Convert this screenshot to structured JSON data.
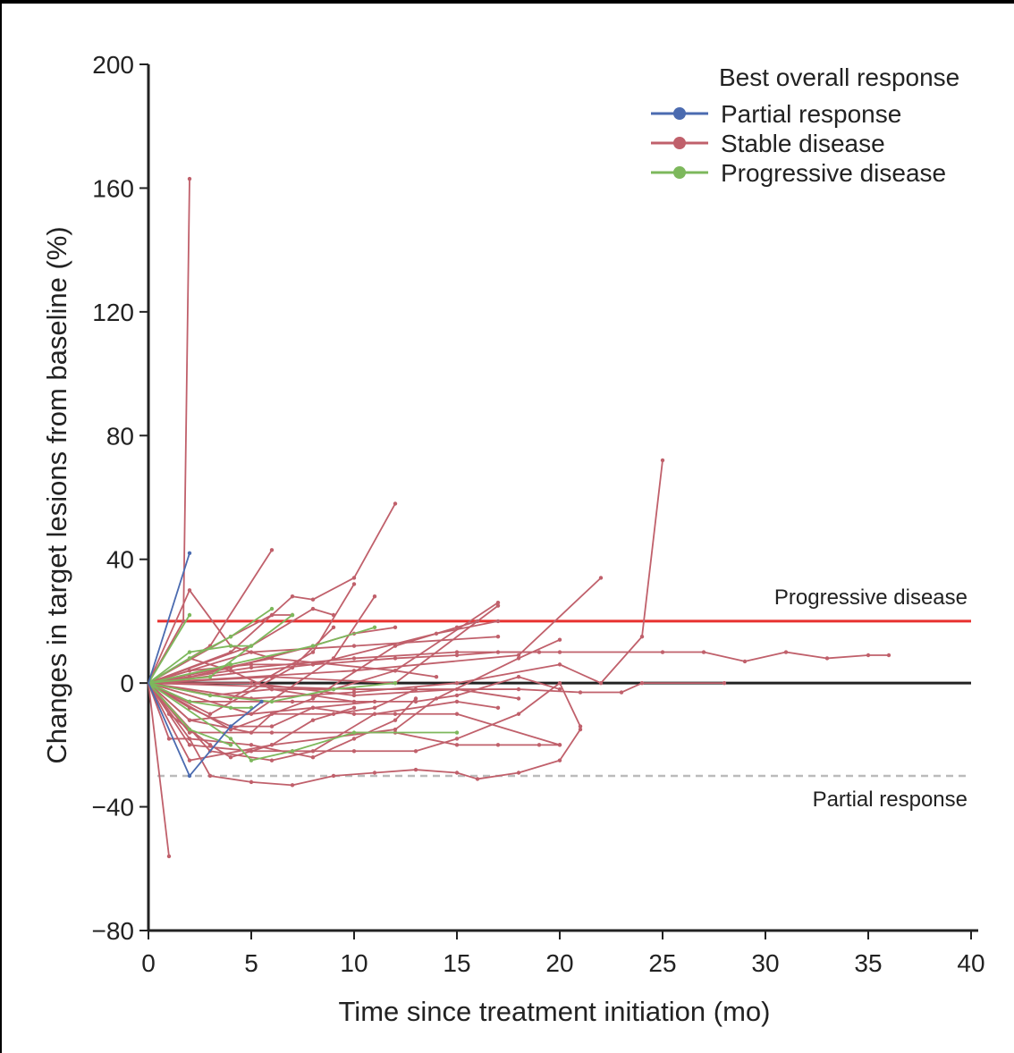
{
  "chart_data": {
    "type": "line",
    "xlabel": "Time since treatment initiation (mo)",
    "ylabel": "Changes in target lesions from baseline (%)",
    "xlim": [
      0,
      40
    ],
    "ylim": [
      -80,
      200
    ],
    "xticks": [
      0,
      5,
      10,
      15,
      20,
      25,
      30,
      35,
      40
    ],
    "yticks": [
      -80,
      -40,
      0,
      40,
      80,
      120,
      160,
      200
    ],
    "grid": false,
    "legend": {
      "title": "Best overall response",
      "placement": "top-right",
      "entries": [
        {
          "name": "Partial response",
          "color": "#4b6bb0"
        },
        {
          "name": "Stable disease",
          "color": "#c0606b"
        },
        {
          "name": "Progressive disease",
          "color": "#7db85c"
        }
      ]
    },
    "reference_lines": [
      {
        "label": "Progressive disease",
        "y": 20,
        "color": "#e8312f",
        "style": "solid"
      },
      {
        "label": "",
        "y": 0,
        "color": "#222222",
        "style": "solid"
      },
      {
        "label": "Partial response",
        "y": -30,
        "color": "#bbbbbb",
        "style": "dashed"
      }
    ],
    "series": [
      {
        "group": "Stable disease",
        "points": [
          [
            0,
            0
          ],
          [
            1.7,
            20
          ],
          [
            2,
            163
          ]
        ]
      },
      {
        "group": "Stable disease",
        "points": [
          [
            0,
            0
          ],
          [
            1,
            -56
          ]
        ]
      },
      {
        "group": "Partial response",
        "points": [
          [
            0,
            0
          ],
          [
            2,
            42
          ]
        ]
      },
      {
        "group": "Partial response",
        "points": [
          [
            0,
            0
          ],
          [
            2,
            -30
          ],
          [
            4,
            -14
          ],
          [
            5.5,
            -6
          ]
        ]
      },
      {
        "group": "Stable disease",
        "points": [
          [
            0,
            0
          ],
          [
            2,
            -18
          ],
          [
            3,
            -30
          ],
          [
            5,
            -32
          ],
          [
            7,
            -33
          ],
          [
            9,
            -30
          ],
          [
            11,
            -29
          ],
          [
            13,
            -28
          ],
          [
            15,
            -29
          ],
          [
            16,
            -31
          ],
          [
            18,
            -29
          ],
          [
            20,
            -25
          ],
          [
            21,
            -15
          ]
        ]
      },
      {
        "group": "Stable disease",
        "points": [
          [
            0,
            0
          ],
          [
            5,
            -5
          ],
          [
            10,
            -3
          ],
          [
            15,
            0
          ],
          [
            20,
            6
          ],
          [
            22,
            0
          ],
          [
            24,
            15
          ],
          [
            25,
            72
          ]
        ]
      },
      {
        "group": "Stable disease",
        "points": [
          [
            0,
            0
          ],
          [
            5,
            5
          ],
          [
            10,
            8
          ],
          [
            15,
            10
          ],
          [
            20,
            10
          ],
          [
            25,
            10
          ],
          [
            27,
            10
          ],
          [
            29,
            7
          ],
          [
            31,
            10
          ],
          [
            33,
            8
          ],
          [
            35,
            9
          ],
          [
            36,
            9
          ]
        ]
      },
      {
        "group": "Stable disease",
        "points": [
          [
            0,
            0
          ],
          [
            10,
            -2
          ],
          [
            18,
            -2
          ],
          [
            21,
            -3
          ],
          [
            23,
            -3
          ],
          [
            24,
            0
          ],
          [
            28,
            0
          ]
        ]
      },
      {
        "group": "Stable disease",
        "points": [
          [
            0,
            0
          ],
          [
            4,
            10
          ],
          [
            7,
            28
          ],
          [
            8,
            27
          ],
          [
            10,
            34
          ],
          [
            12,
            58
          ]
        ]
      },
      {
        "group": "Stable disease",
        "points": [
          [
            0,
            0
          ],
          [
            3,
            12
          ],
          [
            6,
            43
          ]
        ]
      },
      {
        "group": "Stable disease",
        "points": [
          [
            0,
            0
          ],
          [
            2,
            30
          ],
          [
            4,
            12
          ],
          [
            6,
            8
          ]
        ]
      },
      {
        "group": "Stable disease",
        "points": [
          [
            0,
            0
          ],
          [
            10,
            4
          ],
          [
            18,
            9
          ],
          [
            22,
            34
          ]
        ]
      },
      {
        "group": "Stable disease",
        "points": [
          [
            0,
            0
          ],
          [
            6,
            8
          ],
          [
            12,
            4
          ],
          [
            17,
            26
          ]
        ]
      },
      {
        "group": "Stable disease",
        "points": [
          [
            0,
            0
          ],
          [
            6,
            2
          ],
          [
            12,
            0
          ],
          [
            17,
            25
          ]
        ]
      },
      {
        "group": "Stable disease",
        "points": [
          [
            0,
            0
          ],
          [
            5,
            10
          ],
          [
            10,
            12
          ],
          [
            17,
            15
          ]
        ]
      },
      {
        "group": "Stable disease",
        "points": [
          [
            0,
            0
          ],
          [
            8,
            6
          ],
          [
            14,
            16
          ],
          [
            17,
            20
          ]
        ]
      },
      {
        "group": "Stable disease",
        "points": [
          [
            0,
            0
          ],
          [
            4,
            15
          ],
          [
            6,
            22
          ],
          [
            7,
            22
          ]
        ]
      },
      {
        "group": "Stable disease",
        "points": [
          [
            0,
            0
          ],
          [
            5,
            12
          ],
          [
            8,
            24
          ],
          [
            9,
            22
          ]
        ]
      },
      {
        "group": "Stable disease",
        "points": [
          [
            0,
            0
          ],
          [
            4,
            -5
          ],
          [
            8,
            10
          ],
          [
            10,
            32
          ]
        ]
      },
      {
        "group": "Stable disease",
        "points": [
          [
            0,
            0
          ],
          [
            5,
            -10
          ],
          [
            9,
            8
          ],
          [
            11,
            28
          ]
        ]
      },
      {
        "group": "Stable disease",
        "points": [
          [
            0,
            0
          ],
          [
            3,
            -10
          ],
          [
            7,
            5
          ],
          [
            9,
            18
          ]
        ]
      },
      {
        "group": "Stable disease",
        "points": [
          [
            0,
            0
          ],
          [
            4,
            -15
          ],
          [
            8,
            -5
          ],
          [
            12,
            12
          ],
          [
            15,
            18
          ],
          [
            16,
            20
          ]
        ]
      },
      {
        "group": "Stable disease",
        "points": [
          [
            0,
            0
          ],
          [
            2,
            -25
          ],
          [
            6,
            -20
          ],
          [
            12,
            -15
          ],
          [
            14,
            -5
          ],
          [
            18,
            8
          ],
          [
            20,
            14
          ]
        ]
      },
      {
        "group": "Stable disease",
        "points": [
          [
            0,
            0
          ],
          [
            2,
            -12
          ],
          [
            8,
            -8
          ],
          [
            10,
            -10
          ],
          [
            12,
            -10
          ],
          [
            15,
            -10
          ],
          [
            20,
            -20
          ]
        ]
      },
      {
        "group": "Stable disease",
        "points": [
          [
            0,
            0
          ],
          [
            2,
            -16
          ],
          [
            6,
            -16
          ],
          [
            12,
            -16
          ],
          [
            15,
            -20
          ],
          [
            17,
            -20
          ],
          [
            19,
            -20
          ],
          [
            20,
            -20
          ]
        ]
      },
      {
        "group": "Stable disease",
        "points": [
          [
            0,
            0
          ],
          [
            2,
            -20
          ],
          [
            5,
            -22
          ],
          [
            7,
            -22
          ],
          [
            10,
            -22
          ],
          [
            13,
            -22
          ],
          [
            15,
            -18
          ],
          [
            18,
            -10
          ],
          [
            20,
            0
          ],
          [
            21,
            -14
          ]
        ]
      },
      {
        "group": "Stable disease",
        "points": [
          [
            0,
            0
          ],
          [
            2,
            -6
          ],
          [
            7,
            -6
          ],
          [
            13,
            -6
          ],
          [
            15,
            -4
          ],
          [
            18,
            2
          ],
          [
            20,
            -2
          ]
        ]
      },
      {
        "group": "Stable disease",
        "points": [
          [
            0,
            0
          ],
          [
            1,
            -18
          ],
          [
            2,
            -18
          ],
          [
            5,
            -20
          ],
          [
            8,
            -24
          ],
          [
            10,
            -18
          ],
          [
            12,
            -12
          ],
          [
            13,
            -5
          ]
        ]
      },
      {
        "group": "Stable disease",
        "points": [
          [
            0,
            0
          ],
          [
            2,
            -8
          ],
          [
            4,
            -14
          ],
          [
            6,
            -14
          ],
          [
            8,
            -8
          ],
          [
            11,
            -6
          ]
        ]
      },
      {
        "group": "Stable disease",
        "points": [
          [
            0,
            0
          ],
          [
            3,
            -4
          ],
          [
            6,
            -2
          ],
          [
            9,
            -2
          ],
          [
            12,
            4
          ],
          [
            14,
            2
          ]
        ]
      },
      {
        "group": "Stable disease",
        "points": [
          [
            0,
            0
          ],
          [
            2,
            4
          ],
          [
            5,
            6
          ],
          [
            8,
            6
          ],
          [
            12,
            8
          ],
          [
            15,
            9
          ],
          [
            17,
            10
          ],
          [
            19,
            10
          ]
        ]
      },
      {
        "group": "Stable disease",
        "points": [
          [
            0,
            0
          ],
          [
            2,
            -12
          ],
          [
            5,
            -16
          ],
          [
            6,
            -10
          ],
          [
            9,
            -10
          ],
          [
            11,
            -8
          ],
          [
            13,
            -2
          ]
        ]
      },
      {
        "group": "Stable disease",
        "points": [
          [
            0,
            0
          ],
          [
            2,
            2
          ],
          [
            4,
            5
          ],
          [
            8,
            12
          ],
          [
            10,
            16
          ],
          [
            12,
            18
          ]
        ]
      },
      {
        "group": "Stable disease",
        "points": [
          [
            0,
            0
          ],
          [
            3,
            -22
          ],
          [
            6,
            -25
          ],
          [
            8,
            -22
          ],
          [
            11,
            -10
          ],
          [
            15,
            -6
          ],
          [
            17,
            -8
          ]
        ]
      },
      {
        "group": "Stable disease",
        "points": [
          [
            0,
            0
          ],
          [
            2,
            8
          ],
          [
            4,
            4
          ],
          [
            6,
            -2
          ],
          [
            8,
            -4
          ],
          [
            10,
            -6
          ]
        ]
      },
      {
        "group": "Stable disease",
        "points": [
          [
            0,
            0
          ],
          [
            5,
            0
          ],
          [
            10,
            -4
          ],
          [
            15,
            -2
          ],
          [
            18,
            -5
          ]
        ]
      },
      {
        "group": "Stable disease",
        "points": [
          [
            0,
            0
          ],
          [
            1,
            -10
          ],
          [
            3,
            -20
          ],
          [
            4,
            -24
          ],
          [
            6,
            -20
          ],
          [
            8,
            -12
          ],
          [
            10,
            -8
          ]
        ]
      },
      {
        "group": "Progressive disease",
        "points": [
          [
            0,
            0
          ],
          [
            2,
            10
          ],
          [
            4,
            12
          ],
          [
            5,
            12
          ]
        ]
      },
      {
        "group": "Progressive disease",
        "points": [
          [
            0,
            0
          ],
          [
            2,
            22
          ]
        ]
      },
      {
        "group": "Progressive disease",
        "points": [
          [
            0,
            0
          ],
          [
            2,
            8
          ],
          [
            4,
            15
          ],
          [
            6,
            24
          ]
        ]
      },
      {
        "group": "Progressive disease",
        "points": [
          [
            0,
            0
          ],
          [
            4,
            -18
          ],
          [
            5,
            -25
          ],
          [
            7,
            -22
          ],
          [
            10,
            -16
          ],
          [
            15,
            -16
          ]
        ]
      },
      {
        "group": "Progressive disease",
        "points": [
          [
            0,
            0
          ],
          [
            2,
            -15
          ],
          [
            4,
            -20
          ]
        ]
      },
      {
        "group": "Progressive disease",
        "points": [
          [
            0,
            0
          ],
          [
            3,
            -4
          ],
          [
            6,
            -6
          ],
          [
            9,
            -2
          ],
          [
            12,
            0
          ]
        ]
      },
      {
        "group": "Progressive disease",
        "points": [
          [
            0,
            0
          ],
          [
            2,
            -6
          ],
          [
            4,
            -8
          ],
          [
            5,
            -8
          ]
        ]
      },
      {
        "group": "Progressive disease",
        "points": [
          [
            0,
            0
          ],
          [
            3,
            2
          ],
          [
            7,
            22
          ]
        ]
      },
      {
        "group": "Progressive disease",
        "points": [
          [
            0,
            0
          ],
          [
            4,
            6
          ],
          [
            8,
            12
          ],
          [
            11,
            18
          ]
        ]
      }
    ]
  }
}
